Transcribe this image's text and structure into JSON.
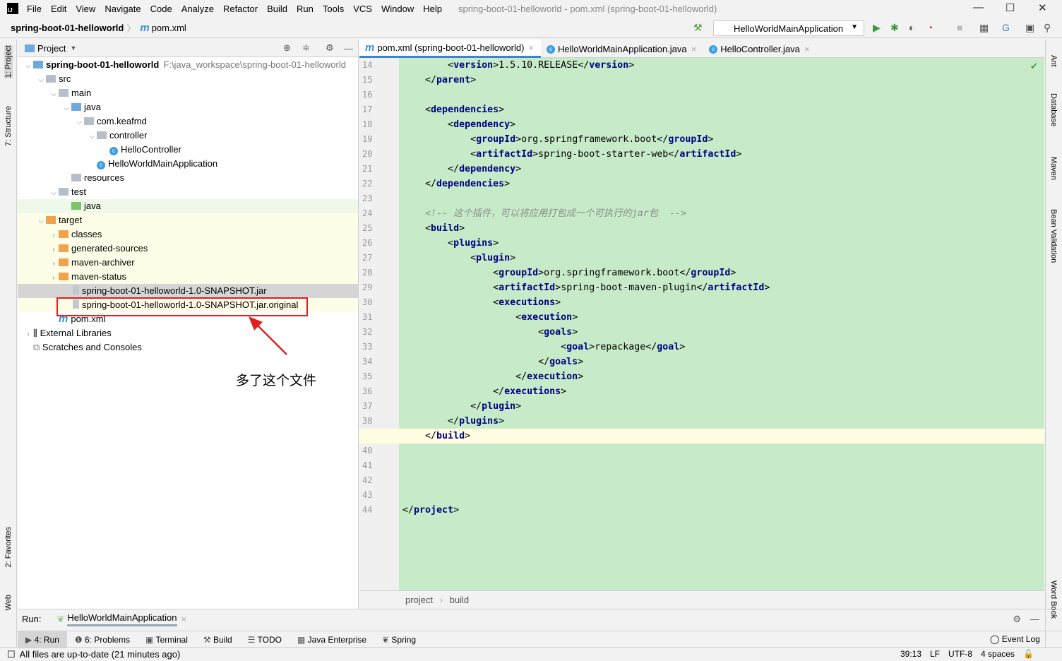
{
  "menu": [
    "File",
    "Edit",
    "View",
    "Navigate",
    "Code",
    "Analyze",
    "Refactor",
    "Build",
    "Run",
    "Tools",
    "VCS",
    "Window",
    "Help"
  ],
  "window_title": "spring-boot-01-helloworld - pom.xml (spring-boot-01-helloworld)",
  "breadcrumb": {
    "project": "spring-boot-01-helloworld",
    "file": "pom.xml",
    "file_icon": "m"
  },
  "run_config": "HelloWorldMainApplication",
  "project_panel": {
    "title": "Project",
    "tree": [
      {
        "label": "spring-boot-01-helloworld",
        "path": "F:\\java_workspace\\spring-boot-01-helloworld",
        "depth": 0,
        "icon": "module",
        "open": true,
        "bold": true
      },
      {
        "label": "src",
        "depth": 1,
        "icon": "folder",
        "open": true
      },
      {
        "label": "main",
        "depth": 2,
        "icon": "folder",
        "open": true
      },
      {
        "label": "java",
        "depth": 3,
        "icon": "folder-src",
        "open": true
      },
      {
        "label": "com.keafmd",
        "depth": 4,
        "icon": "package",
        "open": true
      },
      {
        "label": "controller",
        "depth": 5,
        "icon": "package",
        "open": true
      },
      {
        "label": "HelloController",
        "depth": 6,
        "icon": "class"
      },
      {
        "label": "HelloWorldMainApplication",
        "depth": 5,
        "icon": "class"
      },
      {
        "label": "resources",
        "depth": 3,
        "icon": "folder-res"
      },
      {
        "label": "test",
        "depth": 2,
        "icon": "folder",
        "open": true
      },
      {
        "label": "java",
        "depth": 3,
        "icon": "folder-test",
        "bg": "green"
      },
      {
        "label": "target",
        "depth": 1,
        "icon": "folder-orange",
        "open": true,
        "bg": "yellow"
      },
      {
        "label": "classes",
        "depth": 2,
        "icon": "folder-orange",
        "open": false,
        "bg": "yellow"
      },
      {
        "label": "generated-sources",
        "depth": 2,
        "icon": "folder-orange",
        "open": false,
        "bg": "yellow"
      },
      {
        "label": "maven-archiver",
        "depth": 2,
        "icon": "folder-orange",
        "open": false,
        "bg": "yellow"
      },
      {
        "label": "maven-status",
        "depth": 2,
        "icon": "folder-orange",
        "open": false,
        "bg": "yellow"
      },
      {
        "label": "spring-boot-01-helloworld-1.0-SNAPSHOT.jar",
        "depth": 3,
        "icon": "jar",
        "bg": "sel"
      },
      {
        "label": "spring-boot-01-helloworld-1.0-SNAPSHOT.jar.original",
        "depth": 3,
        "icon": "file",
        "bg": "yellow"
      },
      {
        "label": "pom.xml",
        "depth": 2,
        "icon": "maven"
      },
      {
        "label": "External Libraries",
        "depth": 0,
        "icon": "library",
        "open": false
      },
      {
        "label": "Scratches and Consoles",
        "depth": 0,
        "icon": "scratch"
      }
    ]
  },
  "annotation": "多了这个文件",
  "tabs": [
    {
      "label": "pom.xml (spring-boot-01-helloworld)",
      "icon": "m",
      "active": true
    },
    {
      "label": "HelloWorldMainApplication.java",
      "icon": "c"
    },
    {
      "label": "HelloController.java",
      "icon": "c"
    }
  ],
  "code": [
    {
      "n": 14,
      "t": "        <version>1.5.10.RELEASE</version>"
    },
    {
      "n": 15,
      "t": "    </parent>"
    },
    {
      "n": 16,
      "t": ""
    },
    {
      "n": 17,
      "t": "    <dependencies>"
    },
    {
      "n": 18,
      "t": "        <dependency>"
    },
    {
      "n": 19,
      "t": "            <groupId>org.springframework.boot</groupId>"
    },
    {
      "n": 20,
      "t": "            <artifactId>spring-boot-starter-web</artifactId>"
    },
    {
      "n": 21,
      "t": "        </dependency>"
    },
    {
      "n": 22,
      "t": "    </dependencies>"
    },
    {
      "n": 23,
      "t": ""
    },
    {
      "n": 24,
      "t": "    <!-- 这个插件，可以将应用打包成一个可执行的jar包  -->"
    },
    {
      "n": 25,
      "t": "    <build>"
    },
    {
      "n": 26,
      "t": "        <plugins>"
    },
    {
      "n": 27,
      "t": "            <plugin>"
    },
    {
      "n": 28,
      "t": "                <groupId>org.springframework.boot</groupId>"
    },
    {
      "n": 29,
      "t": "                <artifactId>spring-boot-maven-plugin</artifactId>"
    },
    {
      "n": 30,
      "t": "                <executions>"
    },
    {
      "n": 31,
      "t": "                    <execution>"
    },
    {
      "n": 32,
      "t": "                        <goals>"
    },
    {
      "n": 33,
      "t": "                            <goal>repackage</goal>"
    },
    {
      "n": 34,
      "t": "                        </goals>"
    },
    {
      "n": 35,
      "t": "                    </execution>"
    },
    {
      "n": 36,
      "t": "                </executions>"
    },
    {
      "n": 37,
      "t": "            </plugin>"
    },
    {
      "n": 38,
      "t": "        </plugins>"
    },
    {
      "n": 39,
      "t": "    </build>",
      "current": true
    },
    {
      "n": 40,
      "t": ""
    },
    {
      "n": 41,
      "t": ""
    },
    {
      "n": 42,
      "t": ""
    },
    {
      "n": 43,
      "t": ""
    },
    {
      "n": 44,
      "t": "</project>"
    }
  ],
  "editor_breadcrumb": [
    "project",
    "build"
  ],
  "left_strip": [
    "1: Project",
    "7: Structure",
    "2: Favorites",
    "Web"
  ],
  "right_strip": [
    "Ant",
    "Database",
    "Maven",
    "Bean Validation",
    "Word Book"
  ],
  "run_bar": {
    "label": "Run:",
    "tab": "HelloWorldMainApplication"
  },
  "tool_windows": [
    "4: Run",
    "6: Problems",
    "Terminal",
    "Build",
    "TODO",
    "Java Enterprise",
    "Spring"
  ],
  "event_log": "Event Log",
  "status": {
    "message": "All files are up-to-date (21 minutes ago)",
    "position": "39:13",
    "line_sep": "LF",
    "encoding": "UTF-8",
    "indent": "4 spaces"
  },
  "colors": {
    "editor_bg": "#c7ebc9",
    "tag": "#000080",
    "accent": "#4083c9",
    "highlight_box": "#e02020"
  }
}
